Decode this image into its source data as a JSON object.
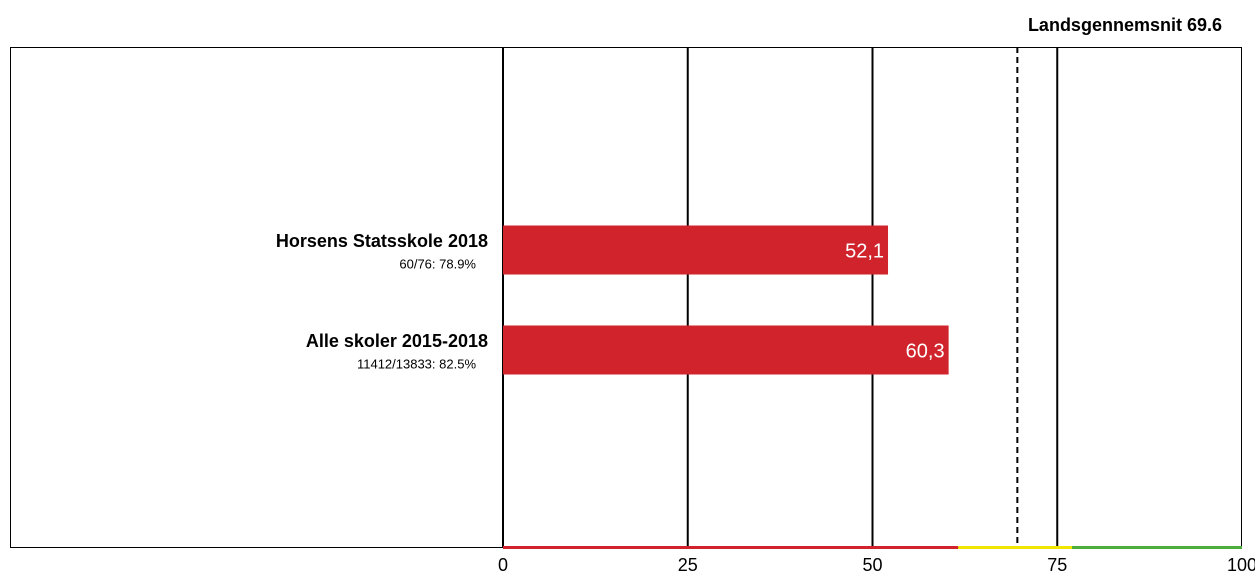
{
  "chart_data": {
    "type": "hbar",
    "categories": [
      "Horsens Statsskole 2018",
      "Alle skoler 2015-2018"
    ],
    "category_notes": [
      "60/76: 78.9%",
      "11412/13833: 82.5%"
    ],
    "values": [
      52.1,
      60.3
    ],
    "value_labels": [
      "52,1",
      "60,3"
    ],
    "color": "#d0232b",
    "xlim": [
      0,
      100
    ],
    "xticks": [
      0,
      25,
      50,
      75,
      100
    ],
    "grid": true,
    "reference": {
      "value": 69.6,
      "label": "Landsgennemsnit 69.6"
    },
    "bands": [
      {
        "from": 0,
        "to": 61.6,
        "color": "#d0232b"
      },
      {
        "from": 61.6,
        "to": 77,
        "color": "#f2e600"
      },
      {
        "from": 77,
        "to": 100,
        "color": "#4caf3c"
      }
    ]
  }
}
